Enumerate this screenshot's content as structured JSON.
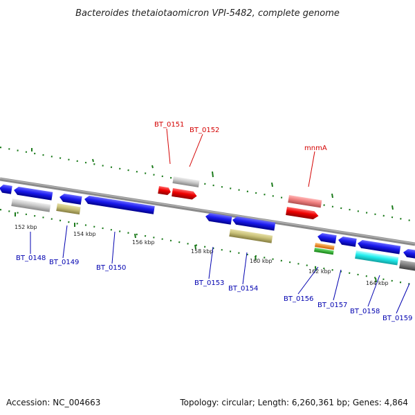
{
  "title": "Bacteroides thetaiotaomicron VPI-5482, complete genome",
  "footer": {
    "accession": "Accession: NC_004663",
    "summary": "Topology: circular; Length: 6,260,361 bp; Genes: 4,864"
  },
  "colors": {
    "backbone": "#8a8a8a",
    "tick_mark": "#1a7a1a",
    "forward_label": "#d40000",
    "reverse_label": "#0000b0",
    "cds_blue": "#1a1aee",
    "cds_red": "#ee0000",
    "cds_pink": "#f08080",
    "cds_gray": "#c8c8c8",
    "cds_khaki": "#c8c078",
    "cds_cyan": "#22eeee",
    "cds_orange": "#ff8800",
    "cds_green": "#22bb22",
    "cds_darkgray": "#888888"
  },
  "scale": {
    "unit": "kbp",
    "ticks": [
      {
        "label": "152 kbp",
        "kbp": 152
      },
      {
        "label": "154 kbp",
        "kbp": 154
      },
      {
        "label": "156 kbp",
        "kbp": 156
      },
      {
        "label": "158 kbp",
        "kbp": 158
      },
      {
        "label": "160 kbp",
        "kbp": 160
      },
      {
        "label": "162 kbp",
        "kbp": 162
      },
      {
        "label": "164 kbp",
        "kbp": 164
      }
    ]
  },
  "forward_labels": [
    {
      "name": "BT_0151"
    },
    {
      "name": "BT_0152"
    },
    {
      "name": "mnmA"
    }
  ],
  "reverse_labels": [
    {
      "name": "BT_0148"
    },
    {
      "name": "BT_0149"
    },
    {
      "name": "BT_0150"
    },
    {
      "name": "BT_0153"
    },
    {
      "name": "BT_0154"
    },
    {
      "name": "BT_0156"
    },
    {
      "name": "BT_0157"
    },
    {
      "name": "BT_0158"
    },
    {
      "name": "BT_0159"
    }
  ]
}
